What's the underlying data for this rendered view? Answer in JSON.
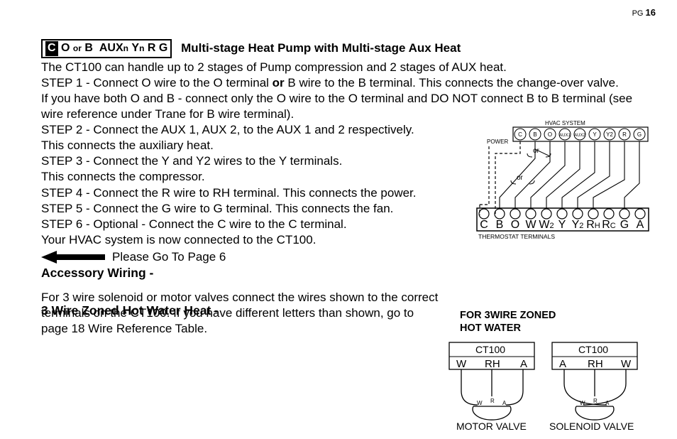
{
  "page_number_label": "PG",
  "page_number": "16",
  "terminal_strip": {
    "items": [
      "C",
      "O",
      "or",
      "B",
      "AUX",
      "n",
      "Y",
      "n",
      "R",
      "G"
    ]
  },
  "heading_main": "Multi-stage Heat Pump with Multi-stage Aux Heat",
  "intro": "The CT100 can handle up to 2 stages of Pump compression and 2 stages of AUX heat.",
  "step1_a": "STEP 1 - Connect O wire to the O terminal ",
  "step1_or": "or",
  "step1_b": " B wire to the B terminal. This connects the change-over valve.",
  "step1_note": "If you have both O and B - connect only the O wire to the O terminal and DO NOT connect B to B terminal  (see wire reference under Trane for B wire terminal).",
  "step2a": "STEP 2 - Connect the AUX 1, AUX 2, to the AUX 1 and 2 respectively.",
  "step2b": "This connects the auxiliary heat.",
  "step3a": "STEP 3 - Connect the Y and Y2 wires to the Y terminals.",
  "step3b": "This connects the compressor.",
  "step4": "STEP 4 - Connect the R wire to RH terminal. This connects the power.",
  "step5": "STEP 5 - Connect the G wire to  G terminal. This connects the fan.",
  "step6": "STEP 6 -  Optional - Connect the C wire to the C terminal.",
  "done": "Your HVAC system is now connected to the CT100.",
  "goto": "Please Go To Page 6",
  "accessory_heading": "Accessory Wiring -",
  "zoned_heading": "3 Wire Zoned Hot Water Heat -",
  "zoned_body": "For 3 wire solenoid or motor valves  connect the wires shown to the correct terminals on the CT100. If you have different letters than shown, go to page 18 Wire Reference Table.",
  "zone_title_1": "FOR 3WIRE ZONED",
  "zone_title_2": "HOT WATER",
  "diagram_top": {
    "hvac_label": "HVAC SYSTEM",
    "power_label": "POWER",
    "or_label": "or",
    "thermostat_label": "THERMOSTAT TERMINALS",
    "hvac_terminals": [
      "C",
      "B",
      "O",
      "AUX1",
      "AUX2",
      "Y",
      "Y2",
      "R",
      "G"
    ],
    "thermostat_terminals": [
      "C",
      "B",
      "O",
      "W",
      "W2",
      "Y",
      "Y2",
      "RH",
      "RC",
      "G",
      "A"
    ]
  },
  "valve_left": {
    "device": "CT100",
    "t1": "W",
    "t2": "RH",
    "t3": "A",
    "b1": "W",
    "b2": "R",
    "b3": "A",
    "caption": "MOTOR VALVE"
  },
  "valve_right": {
    "device": "CT100",
    "t1": "A",
    "t2": "RH",
    "t3": "W",
    "b1": "W",
    "b2": "R",
    "b3": "A",
    "caption": "SOLENOID VALVE"
  },
  "colors": {
    "text": "#000000",
    "bg": "#ffffff"
  }
}
